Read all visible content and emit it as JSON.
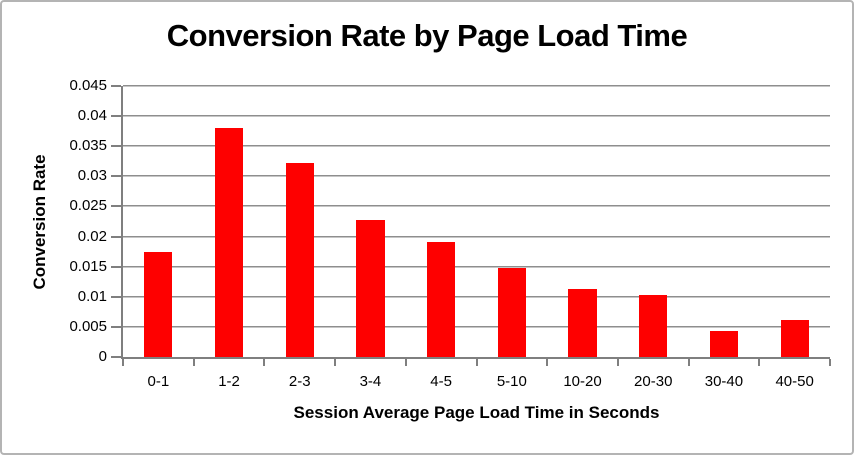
{
  "window": {
    "background": "#ffffff",
    "border_color": "#b4b4b4"
  },
  "chart_data": {
    "type": "bar",
    "title": "Conversion Rate by Page Load Time",
    "xlabel": "Session Average Page Load Time in Seconds",
    "ylabel": "Conversion Rate",
    "categories": [
      "0-1",
      "1-2",
      "2-3",
      "3-4",
      "4-5",
      "5-10",
      "10-20",
      "20-30",
      "30-40",
      "40-50"
    ],
    "values": [
      0.0175,
      0.038,
      0.0322,
      0.0227,
      0.0191,
      0.0147,
      0.0113,
      0.0103,
      0.0043,
      0.0062
    ],
    "ylim": [
      0,
      0.045
    ],
    "ytick_labels": [
      "0",
      "0.005",
      "0.01",
      "0.015",
      "0.02",
      "0.025",
      "0.03",
      "0.035",
      "0.04",
      "0.045"
    ],
    "grid": true,
    "legend": "none",
    "bar_color": "#fe0000",
    "gridline_color": "#8e8e8e",
    "axis_color": "#7f7f7f",
    "text_color": "#000000",
    "bar_fraction_of_category": 0.4
  }
}
